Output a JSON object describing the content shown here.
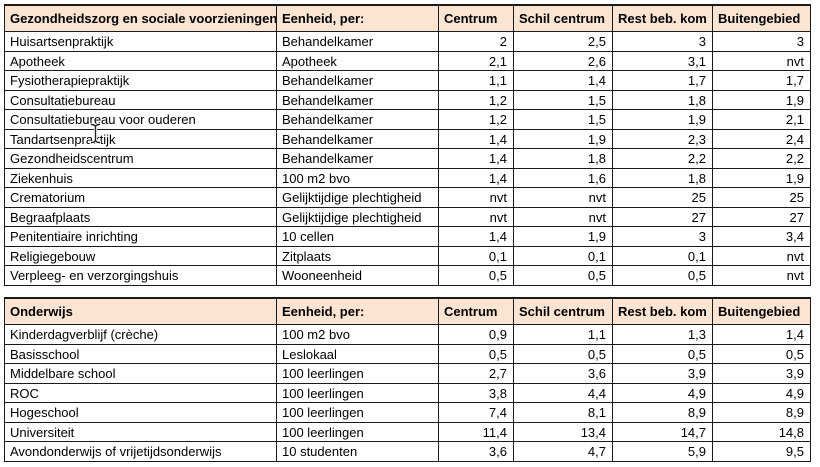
{
  "colors": {
    "header_bg": "#fbe4d2",
    "border": "#1a1a1a",
    "text": "#000000",
    "page_bg": "#ffffff"
  },
  "cursor_icon": "i-beam-text-cursor",
  "tables": [
    {
      "title": "Gezondheidszorg en sociale voorzieningen",
      "unit_header": "Eenheid, per:",
      "columns": [
        "Centrum",
        "Schil centrum",
        "Rest beb. kom",
        "Buitengebied"
      ],
      "rows": [
        {
          "label": "Huisartsenpraktijk",
          "unit": "Behandelkamer",
          "values": [
            "2",
            "2,5",
            "3",
            "3"
          ]
        },
        {
          "label": "Apotheek",
          "unit": "Apotheek",
          "values": [
            "2,1",
            "2,6",
            "3,1",
            "nvt"
          ]
        },
        {
          "label": "Fysiotherapiepraktijk",
          "unit": "Behandelkamer",
          "values": [
            "1,1",
            "1,4",
            "1,7",
            "1,7"
          ]
        },
        {
          "label": "Consultatiebureau",
          "unit": "Behandelkamer",
          "values": [
            "1,2",
            "1,5",
            "1,8",
            "1,9"
          ]
        },
        {
          "label": "Consultatiebureau voor ouderen",
          "unit": "Behandelkamer",
          "values": [
            "1,2",
            "1,5",
            "1,9",
            "2,1"
          ]
        },
        {
          "label": "Tandartsenpraktijk",
          "unit": "Behandelkamer",
          "values": [
            "1,4",
            "1,9",
            "2,3",
            "2,4"
          ]
        },
        {
          "label": "Gezondheidscentrum",
          "unit": "Behandelkamer",
          "values": [
            "1,4",
            "1,8",
            "2,2",
            "2,2"
          ]
        },
        {
          "label": "Ziekenhuis",
          "unit": "100 m2 bvo",
          "values": [
            "1,4",
            "1,6",
            "1,8",
            "1,9"
          ]
        },
        {
          "label": "Crematorium",
          "unit": "Gelijktijdige plechtigheid",
          "values": [
            "nvt",
            "nvt",
            "25",
            "25"
          ]
        },
        {
          "label": "Begraafplaats",
          "unit": "Gelijktijdige plechtigheid",
          "values": [
            "nvt",
            "nvt",
            "27",
            "27"
          ]
        },
        {
          "label": "Penitentiaire inrichting",
          "unit": "10 cellen",
          "values": [
            "1,4",
            "1,9",
            "3",
            "3,4"
          ]
        },
        {
          "label": "Religiegebouw",
          "unit": "Zitplaats",
          "values": [
            "0,1",
            "0,1",
            "0,1",
            "nvt"
          ]
        },
        {
          "label": "Verpleeg- en verzorgingshuis",
          "unit": "Wooneenheid",
          "values": [
            "0,5",
            "0,5",
            "0,5",
            "nvt"
          ]
        }
      ]
    },
    {
      "title": "Onderwijs",
      "unit_header": "Eenheid, per:",
      "columns": [
        "Centrum",
        "Schil centrum",
        "Rest beb. kom",
        "Buitengebied"
      ],
      "rows": [
        {
          "label": "Kinderdagverblijf (crèche)",
          "unit": "100 m2 bvo",
          "values": [
            "0,9",
            "1,1",
            "1,3",
            "1,4"
          ]
        },
        {
          "label": "Basisschool",
          "unit": "Leslokaal",
          "values": [
            "0,5",
            "0,5",
            "0,5",
            "0,5"
          ]
        },
        {
          "label": "Middelbare school",
          "unit": "100 leerlingen",
          "values": [
            "2,7",
            "3,6",
            "3,9",
            "3,9"
          ]
        },
        {
          "label": "ROC",
          "unit": "100 leerlingen",
          "values": [
            "3,8",
            "4,4",
            "4,9",
            "4,9"
          ]
        },
        {
          "label": "Hogeschool",
          "unit": "100 leerlingen",
          "values": [
            "7,4",
            "8,1",
            "8,9",
            "8,9"
          ]
        },
        {
          "label": "Universiteit",
          "unit": "100 leerlingen",
          "values": [
            "11,4",
            "13,4",
            "14,7",
            "14,8"
          ]
        },
        {
          "label": "Avondonderwijs of vrijetijdsonderwijs",
          "unit": "10 studenten",
          "values": [
            "3,6",
            "4,7",
            "5,9",
            "9,5"
          ]
        }
      ]
    }
  ]
}
